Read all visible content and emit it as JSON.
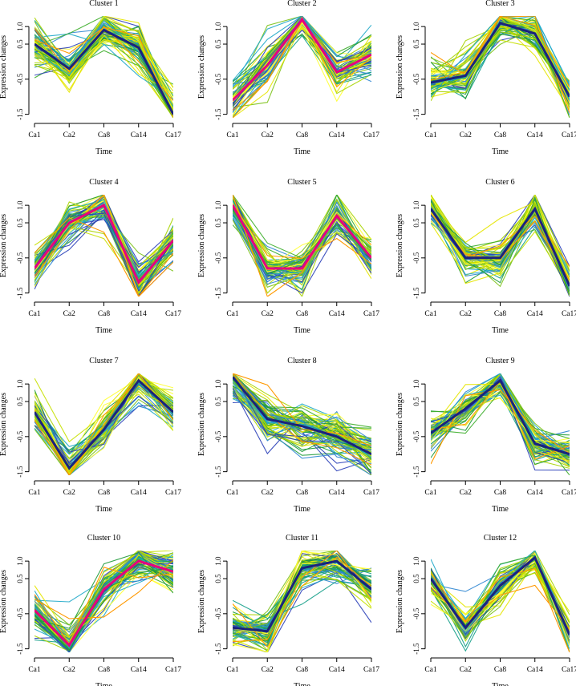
{
  "figure": {
    "common_xlabel": "Time",
    "common_ylabel": "Expression changes",
    "time_points": [
      "Ca1",
      "Ca2",
      "Ca8",
      "Ca14",
      "Ca17"
    ],
    "y_ticks": [
      "-1.5",
      "-0.5",
      "0.5",
      "1.0"
    ],
    "palette": [
      "#FFFF33",
      "#E6E600",
      "#C6E000",
      "#A8D400",
      "#7CC218",
      "#3DAE2B",
      "#1E9A3A",
      "#16A08A",
      "#1FA9C9",
      "#2F86D1",
      "#2A3FB8",
      "#FF9900",
      "#E6007E",
      "#1A237E"
    ]
  },
  "chart_data": [
    {
      "type": "line",
      "title": "Cluster 1",
      "x": [
        "Ca1",
        "Ca2",
        "Ca8",
        "Ca14",
        "Ca17"
      ],
      "ylim": [
        -1.6,
        1.3
      ],
      "xlabel": "Time",
      "ylabel": "Expression changes",
      "centroid": [
        0.5,
        -0.2,
        0.9,
        0.4,
        -1.5
      ],
      "spread": 0.32,
      "n_lines": 75,
      "highlight": "#1A237E"
    },
    {
      "type": "line",
      "title": "Cluster 2",
      "x": [
        "Ca1",
        "Ca2",
        "Ca8",
        "Ca14",
        "Ca17"
      ],
      "ylim": [
        -1.6,
        1.3
      ],
      "xlabel": "Time",
      "ylabel": "Expression changes",
      "centroid": [
        -1.1,
        -0.1,
        1.2,
        -0.3,
        0.2
      ],
      "spread": 0.28,
      "n_lines": 75,
      "highlight": "#E6007E"
    },
    {
      "type": "line",
      "title": "Cluster 3",
      "x": [
        "Ca1",
        "Ca2",
        "Ca8",
        "Ca14",
        "Ca17"
      ],
      "ylim": [
        -1.6,
        1.3
      ],
      "xlabel": "Time",
      "ylabel": "Expression changes",
      "centroid": [
        -0.6,
        -0.4,
        1.1,
        0.8,
        -1.0
      ],
      "spread": 0.3,
      "n_lines": 75,
      "highlight": "#1A237E"
    },
    {
      "type": "line",
      "title": "Cluster 4",
      "x": [
        "Ca1",
        "Ca2",
        "Ca8",
        "Ca14",
        "Ca17"
      ],
      "ylim": [
        -1.6,
        1.3
      ],
      "xlabel": "Time",
      "ylabel": "Expression changes",
      "centroid": [
        -0.8,
        0.5,
        1.0,
        -1.2,
        0.0
      ],
      "spread": 0.3,
      "n_lines": 75,
      "highlight": "#E6007E"
    },
    {
      "type": "line",
      "title": "Cluster 5",
      "x": [
        "Ca1",
        "Ca2",
        "Ca8",
        "Ca14",
        "Ca17"
      ],
      "ylim": [
        -1.6,
        1.3
      ],
      "xlabel": "Time",
      "ylabel": "Expression changes",
      "centroid": [
        1.0,
        -0.8,
        -0.8,
        0.7,
        -0.5
      ],
      "spread": 0.28,
      "n_lines": 75,
      "highlight": "#E6007E"
    },
    {
      "type": "line",
      "title": "Cluster 6",
      "x": [
        "Ca1",
        "Ca2",
        "Ca8",
        "Ca14",
        "Ca17"
      ],
      "ylim": [
        -1.6,
        1.3
      ],
      "xlabel": "Time",
      "ylabel": "Expression changes",
      "centroid": [
        0.9,
        -0.5,
        -0.5,
        0.9,
        -1.3
      ],
      "spread": 0.25,
      "n_lines": 75,
      "highlight": "#1A237E"
    },
    {
      "type": "line",
      "title": "Cluster 7",
      "x": [
        "Ca1",
        "Ca2",
        "Ca8",
        "Ca14",
        "Ca17"
      ],
      "ylim": [
        -1.6,
        1.3
      ],
      "xlabel": "Time",
      "ylabel": "Expression changes",
      "centroid": [
        0.2,
        -1.4,
        -0.3,
        1.1,
        0.2
      ],
      "spread": 0.3,
      "n_lines": 75,
      "highlight": "#1A237E"
    },
    {
      "type": "line",
      "title": "Cluster 8",
      "x": [
        "Ca1",
        "Ca2",
        "Ca8",
        "Ca14",
        "Ca17"
      ],
      "ylim": [
        -1.6,
        1.3
      ],
      "xlabel": "Time",
      "ylabel": "Expression changes",
      "centroid": [
        1.2,
        0.0,
        -0.2,
        -0.5,
        -1.0
      ],
      "spread": 0.35,
      "n_lines": 75,
      "highlight": "#1A237E"
    },
    {
      "type": "line",
      "title": "Cluster 9",
      "x": [
        "Ca1",
        "Ca2",
        "Ca8",
        "Ca14",
        "Ca17"
      ],
      "ylim": [
        -1.6,
        1.3
      ],
      "xlabel": "Time",
      "ylabel": "Expression changes",
      "centroid": [
        -0.4,
        0.3,
        1.1,
        -0.7,
        -1.0
      ],
      "spread": 0.3,
      "n_lines": 75,
      "highlight": "#1A237E"
    },
    {
      "type": "line",
      "title": "Cluster 10",
      "x": [
        "Ca1",
        "Ca2",
        "Ca8",
        "Ca14",
        "Ca17"
      ],
      "ylim": [
        -1.6,
        1.3
      ],
      "xlabel": "Time",
      "ylabel": "Expression changes",
      "centroid": [
        -0.4,
        -1.4,
        0.2,
        1.0,
        0.7
      ],
      "spread": 0.3,
      "n_lines": 75,
      "highlight": "#E6007E"
    },
    {
      "type": "line",
      "title": "Cluster 11",
      "x": [
        "Ca1",
        "Ca2",
        "Ca8",
        "Ca14",
        "Ca17"
      ],
      "ylim": [
        -1.6,
        1.3
      ],
      "xlabel": "Time",
      "ylabel": "Expression changes",
      "centroid": [
        -0.9,
        -1.0,
        0.8,
        1.0,
        0.2
      ],
      "spread": 0.3,
      "n_lines": 75,
      "highlight": "#1A237E"
    },
    {
      "type": "line",
      "title": "Cluster 12",
      "x": [
        "Ca1",
        "Ca2",
        "Ca8",
        "Ca14",
        "Ca17"
      ],
      "ylim": [
        -1.6,
        1.3
      ],
      "xlabel": "Time",
      "ylabel": "Expression changes",
      "centroid": [
        0.5,
        -0.9,
        0.3,
        1.1,
        -1.1
      ],
      "spread": 0.3,
      "n_lines": 75,
      "highlight": "#1A237E"
    }
  ]
}
